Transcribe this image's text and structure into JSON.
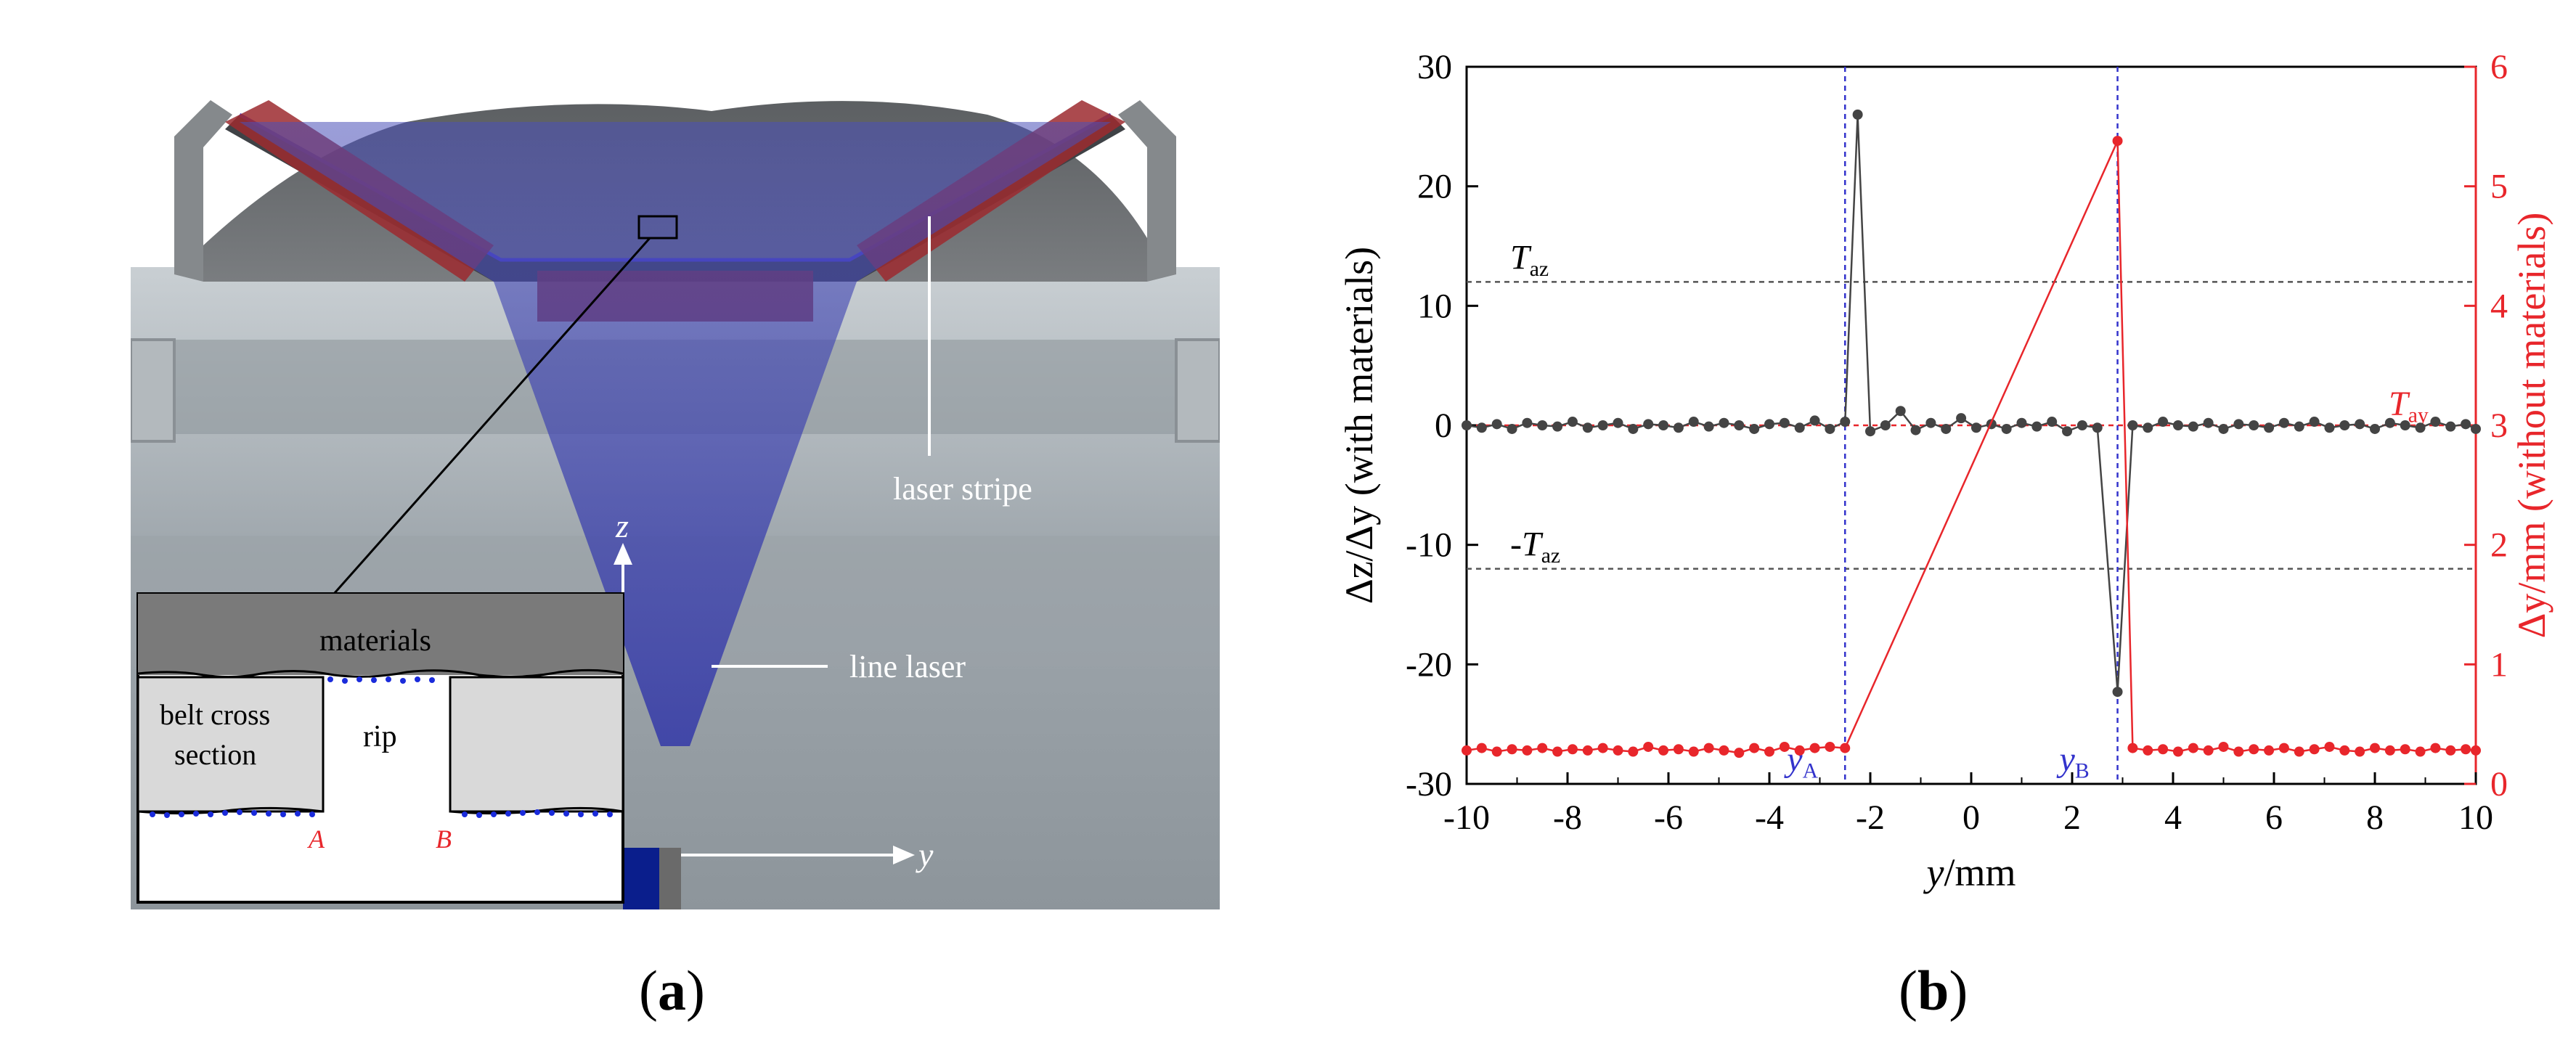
{
  "panel_a": {
    "labels": {
      "laser_stripe": "laser stripe",
      "line_laser": "line laser",
      "axis_z": "z",
      "axis_y": "y",
      "materials": "materials",
      "belt_cross_line1": "belt cross",
      "belt_cross_line2": "section",
      "rip": "rip",
      "point_a": "A",
      "point_b": "B"
    },
    "caption": "a"
  },
  "panel_b": {
    "caption": "b",
    "colors": {
      "left_series": "#444444",
      "right_series": "#e8262b",
      "marker_lines": "#3333cc"
    },
    "chart_data": {
      "type": "line",
      "xlabel_prefix": "y",
      "xlabel_suffix": "/mm",
      "ylabel_left": "Δz/Δy (with materials)",
      "ylabel_right": "Δy/mm (without materials)",
      "xlim": [
        -10,
        10
      ],
      "ylim_left": [
        -30,
        30
      ],
      "ylim_right": [
        0,
        6
      ],
      "x_ticks": [
        "-10",
        "-8",
        "-6",
        "-4",
        "-2",
        "0",
        "2",
        "4",
        "6",
        "8",
        "10"
      ],
      "y_left_ticks": [
        "30",
        "20",
        "10",
        "0",
        "-10",
        "-20",
        "-30"
      ],
      "y_right_ticks": [
        "6",
        "5",
        "4",
        "3",
        "2",
        "1",
        "0"
      ],
      "thresholds": [
        {
          "label_main": "T",
          "label_sub": "az",
          "axis": "left",
          "value": 12
        },
        {
          "label_main": "-T",
          "label_sub": "az",
          "axis": "left",
          "value": -12
        },
        {
          "label_main": "T",
          "label_sub": "ay",
          "axis": "right",
          "value": 3.0
        }
      ],
      "markers": [
        {
          "label_main": "y",
          "label_sub": "A",
          "x": -2.5
        },
        {
          "label_main": "y",
          "label_sub": "B",
          "x": 2.9
        }
      ],
      "series": [
        {
          "axis": "left",
          "x": [
            -10,
            -9.7,
            -9.4,
            -9.1,
            -8.8,
            -8.5,
            -8.2,
            -7.9,
            -7.6,
            -7.3,
            -7.0,
            -6.7,
            -6.4,
            -6.1,
            -5.8,
            -5.5,
            -5.2,
            -4.9,
            -4.6,
            -4.3,
            -4.0,
            -3.7,
            -3.4,
            -3.1,
            -2.8,
            -2.5,
            -2.25,
            -2.0,
            -1.7,
            -1.4,
            -1.1,
            -0.8,
            -0.5,
            -0.2,
            0.1,
            0.4,
            0.7,
            1.0,
            1.3,
            1.6,
            1.9,
            2.2,
            2.5,
            2.9,
            3.2,
            3.5,
            3.8,
            4.1,
            4.4,
            4.7,
            5.0,
            5.3,
            5.6,
            5.9,
            6.2,
            6.5,
            6.8,
            7.1,
            7.4,
            7.7,
            8.0,
            8.3,
            8.6,
            8.9,
            9.2,
            9.5,
            9.8,
            10
          ],
          "y": [
            0,
            -0.2,
            0.1,
            -0.3,
            0.2,
            0,
            -0.1,
            0.3,
            -0.2,
            0,
            0.2,
            -0.3,
            0.1,
            0,
            -0.2,
            0.3,
            -0.1,
            0.2,
            0,
            -0.3,
            0.1,
            0.2,
            -0.2,
            0.4,
            -0.3,
            0.3,
            26,
            -0.5,
            0,
            1.2,
            -0.4,
            0.2,
            -0.3,
            0.6,
            -0.2,
            0.1,
            -0.3,
            0.2,
            -0.1,
            0.3,
            -0.5,
            0,
            -0.2,
            -22.3,
            0,
            -0.2,
            0.3,
            0,
            -0.1,
            0.2,
            -0.3,
            0.1,
            0,
            -0.2,
            0.2,
            -0.1,
            0.3,
            -0.2,
            0,
            0.1,
            -0.3,
            0.2,
            0,
            -0.2,
            0.3,
            -0.1,
            0.1,
            -0.3
          ]
        },
        {
          "axis": "right",
          "x": [
            -10,
            -9.7,
            -9.4,
            -9.1,
            -8.8,
            -8.5,
            -8.2,
            -7.9,
            -7.6,
            -7.3,
            -7.0,
            -6.7,
            -6.4,
            -6.1,
            -5.8,
            -5.5,
            -5.2,
            -4.9,
            -4.6,
            -4.3,
            -4.0,
            -3.7,
            -3.4,
            -3.1,
            -2.8,
            -2.5,
            2.9,
            3.2,
            3.5,
            3.8,
            4.1,
            4.4,
            4.7,
            5.0,
            5.3,
            5.6,
            5.9,
            6.2,
            6.5,
            6.8,
            7.1,
            7.4,
            7.7,
            8.0,
            8.3,
            8.6,
            8.9,
            9.2,
            9.5,
            9.8,
            10
          ],
          "y": [
            0.28,
            0.3,
            0.27,
            0.29,
            0.28,
            0.3,
            0.27,
            0.29,
            0.28,
            0.3,
            0.28,
            0.27,
            0.31,
            0.28,
            0.29,
            0.27,
            0.3,
            0.28,
            0.26,
            0.3,
            0.27,
            0.31,
            0.28,
            0.3,
            0.31,
            0.3,
            5.38,
            0.3,
            0.28,
            0.29,
            0.27,
            0.3,
            0.28,
            0.31,
            0.27,
            0.29,
            0.28,
            0.3,
            0.27,
            0.29,
            0.31,
            0.28,
            0.27,
            0.3,
            0.28,
            0.29,
            0.27,
            0.3,
            0.28,
            0.29,
            0.28
          ]
        }
      ]
    }
  }
}
